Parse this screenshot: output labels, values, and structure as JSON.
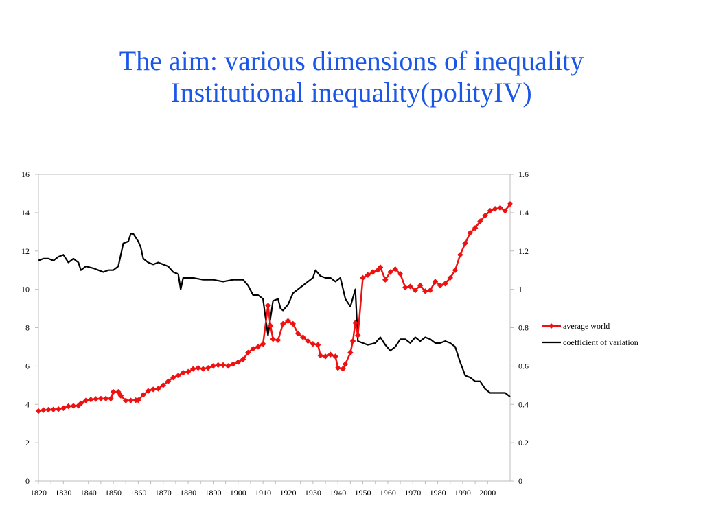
{
  "slide": {
    "title_line1": "The aim: various dimensions of inequality",
    "title_line2": "Institutional inequality(polityIV)"
  },
  "colors": {
    "title": "#1a56e8",
    "average_world": "#ee1111",
    "coefficient_of_variation": "#000000"
  },
  "chart_data": {
    "type": "line",
    "title": "",
    "xlabel": "",
    "ylabel": "",
    "y2label": "",
    "xlim": [
      1820,
      2009
    ],
    "ylim": [
      0,
      16
    ],
    "y2lim": [
      0,
      1.6
    ],
    "x_ticks": [
      "1820",
      "1830",
      "1840",
      "1850",
      "1860",
      "1870",
      "1880",
      "1890",
      "1900",
      "1910",
      "1920",
      "1930",
      "1940",
      "1950",
      "1960",
      "1970",
      "1980",
      "1990",
      "2000"
    ],
    "y_ticks": [
      "0",
      "2",
      "4",
      "6",
      "8",
      "10",
      "12",
      "14",
      "16"
    ],
    "y2_ticks": [
      "0",
      "0.2",
      "0.4",
      "0.6",
      "0.8",
      "1",
      "1.2",
      "1.4",
      "1.6"
    ],
    "grid": false,
    "legend": "right",
    "series": [
      {
        "name": "average world",
        "axis": "left",
        "marker": "diamond",
        "points": [
          [
            1820,
            3.65
          ],
          [
            1822,
            3.7
          ],
          [
            1824,
            3.72
          ],
          [
            1826,
            3.73
          ],
          [
            1828,
            3.75
          ],
          [
            1830,
            3.8
          ],
          [
            1832,
            3.9
          ],
          [
            1834,
            3.92
          ],
          [
            1836,
            3.93
          ],
          [
            1837,
            4.05
          ],
          [
            1839,
            4.2
          ],
          [
            1841,
            4.25
          ],
          [
            1843,
            4.28
          ],
          [
            1845,
            4.3
          ],
          [
            1847,
            4.3
          ],
          [
            1849,
            4.3
          ],
          [
            1850,
            4.65
          ],
          [
            1852,
            4.65
          ],
          [
            1853,
            4.45
          ],
          [
            1855,
            4.2
          ],
          [
            1857,
            4.2
          ],
          [
            1859,
            4.22
          ],
          [
            1860,
            4.22
          ],
          [
            1862,
            4.5
          ],
          [
            1864,
            4.7
          ],
          [
            1866,
            4.78
          ],
          [
            1868,
            4.82
          ],
          [
            1870,
            5.0
          ],
          [
            1872,
            5.2
          ],
          [
            1874,
            5.4
          ],
          [
            1876,
            5.5
          ],
          [
            1878,
            5.65
          ],
          [
            1880,
            5.7
          ],
          [
            1882,
            5.85
          ],
          [
            1884,
            5.9
          ],
          [
            1886,
            5.85
          ],
          [
            1888,
            5.9
          ],
          [
            1890,
            6.0
          ],
          [
            1892,
            6.05
          ],
          [
            1894,
            6.05
          ],
          [
            1896,
            6.0
          ],
          [
            1898,
            6.1
          ],
          [
            1900,
            6.2
          ],
          [
            1902,
            6.35
          ],
          [
            1904,
            6.7
          ],
          [
            1906,
            6.9
          ],
          [
            1908,
            7.0
          ],
          [
            1910,
            7.15
          ],
          [
            1912,
            9.15
          ],
          [
            1913,
            8.1
          ],
          [
            1914,
            7.4
          ],
          [
            1916,
            7.35
          ],
          [
            1918,
            8.2
          ],
          [
            1920,
            8.35
          ],
          [
            1922,
            8.2
          ],
          [
            1924,
            7.7
          ],
          [
            1926,
            7.5
          ],
          [
            1928,
            7.3
          ],
          [
            1930,
            7.15
          ],
          [
            1932,
            7.1
          ],
          [
            1933,
            6.55
          ],
          [
            1935,
            6.5
          ],
          [
            1937,
            6.6
          ],
          [
            1939,
            6.5
          ],
          [
            1940,
            5.9
          ],
          [
            1942,
            5.85
          ],
          [
            1943,
            6.1
          ],
          [
            1945,
            6.7
          ],
          [
            1946,
            7.3
          ],
          [
            1947,
            8.25
          ],
          [
            1948,
            7.6
          ],
          [
            1950,
            10.6
          ],
          [
            1952,
            10.75
          ],
          [
            1954,
            10.9
          ],
          [
            1956,
            11.0
          ],
          [
            1957,
            11.15
          ],
          [
            1959,
            10.5
          ],
          [
            1961,
            10.9
          ],
          [
            1963,
            11.05
          ],
          [
            1965,
            10.8
          ],
          [
            1967,
            10.1
          ],
          [
            1969,
            10.15
          ],
          [
            1971,
            9.95
          ],
          [
            1973,
            10.2
          ],
          [
            1975,
            9.9
          ],
          [
            1977,
            9.95
          ],
          [
            1979,
            10.4
          ],
          [
            1981,
            10.2
          ],
          [
            1983,
            10.3
          ],
          [
            1985,
            10.6
          ],
          [
            1987,
            11.0
          ],
          [
            1989,
            11.8
          ],
          [
            1991,
            12.4
          ],
          [
            1993,
            12.95
          ],
          [
            1995,
            13.2
          ],
          [
            1997,
            13.55
          ],
          [
            1999,
            13.85
          ],
          [
            2001,
            14.1
          ],
          [
            2003,
            14.2
          ],
          [
            2005,
            14.25
          ],
          [
            2007,
            14.1
          ],
          [
            2009,
            14.45
          ]
        ]
      },
      {
        "name": "coefficient of variation",
        "axis": "right",
        "marker": "none",
        "points": [
          [
            1820,
            1.15
          ],
          [
            1822,
            1.16
          ],
          [
            1824,
            1.16
          ],
          [
            1826,
            1.15
          ],
          [
            1828,
            1.17
          ],
          [
            1830,
            1.18
          ],
          [
            1832,
            1.14
          ],
          [
            1834,
            1.16
          ],
          [
            1836,
            1.14
          ],
          [
            1837,
            1.1
          ],
          [
            1839,
            1.12
          ],
          [
            1842,
            1.11
          ],
          [
            1844,
            1.1
          ],
          [
            1846,
            1.09
          ],
          [
            1848,
            1.1
          ],
          [
            1850,
            1.1
          ],
          [
            1852,
            1.12
          ],
          [
            1854,
            1.24
          ],
          [
            1856,
            1.25
          ],
          [
            1857,
            1.29
          ],
          [
            1858,
            1.29
          ],
          [
            1860,
            1.25
          ],
          [
            1861,
            1.22
          ],
          [
            1862,
            1.16
          ],
          [
            1864,
            1.14
          ],
          [
            1866,
            1.13
          ],
          [
            1868,
            1.14
          ],
          [
            1870,
            1.13
          ],
          [
            1872,
            1.12
          ],
          [
            1874,
            1.09
          ],
          [
            1876,
            1.08
          ],
          [
            1877,
            1.0
          ],
          [
            1878,
            1.06
          ],
          [
            1882,
            1.06
          ],
          [
            1886,
            1.05
          ],
          [
            1890,
            1.05
          ],
          [
            1894,
            1.04
          ],
          [
            1898,
            1.05
          ],
          [
            1902,
            1.05
          ],
          [
            1904,
            1.02
          ],
          [
            1906,
            0.97
          ],
          [
            1908,
            0.97
          ],
          [
            1910,
            0.95
          ],
          [
            1911,
            0.85
          ],
          [
            1912,
            0.76
          ],
          [
            1913,
            0.85
          ],
          [
            1914,
            0.94
          ],
          [
            1916,
            0.95
          ],
          [
            1917,
            0.9
          ],
          [
            1918,
            0.89
          ],
          [
            1920,
            0.92
          ],
          [
            1922,
            0.98
          ],
          [
            1925,
            1.01
          ],
          [
            1928,
            1.04
          ],
          [
            1930,
            1.06
          ],
          [
            1931,
            1.1
          ],
          [
            1933,
            1.07
          ],
          [
            1935,
            1.06
          ],
          [
            1937,
            1.06
          ],
          [
            1939,
            1.04
          ],
          [
            1941,
            1.06
          ],
          [
            1943,
            0.95
          ],
          [
            1945,
            0.91
          ],
          [
            1947,
            1.0
          ],
          [
            1948,
            0.73
          ],
          [
            1950,
            0.72
          ],
          [
            1952,
            0.71
          ],
          [
            1955,
            0.72
          ],
          [
            1957,
            0.75
          ],
          [
            1959,
            0.71
          ],
          [
            1961,
            0.68
          ],
          [
            1963,
            0.7
          ],
          [
            1965,
            0.74
          ],
          [
            1967,
            0.74
          ],
          [
            1969,
            0.72
          ],
          [
            1971,
            0.75
          ],
          [
            1973,
            0.73
          ],
          [
            1975,
            0.75
          ],
          [
            1977,
            0.74
          ],
          [
            1979,
            0.72
          ],
          [
            1981,
            0.72
          ],
          [
            1983,
            0.73
          ],
          [
            1985,
            0.72
          ],
          [
            1987,
            0.7
          ],
          [
            1989,
            0.62
          ],
          [
            1991,
            0.55
          ],
          [
            1993,
            0.54
          ],
          [
            1995,
            0.52
          ],
          [
            1997,
            0.52
          ],
          [
            1999,
            0.48
          ],
          [
            2001,
            0.46
          ],
          [
            2003,
            0.46
          ],
          [
            2005,
            0.46
          ],
          [
            2007,
            0.46
          ],
          [
            2009,
            0.44
          ]
        ]
      }
    ]
  }
}
